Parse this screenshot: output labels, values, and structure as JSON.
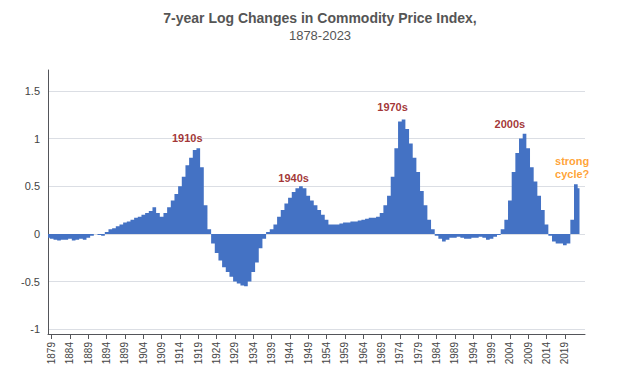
{
  "chart_data": {
    "type": "area",
    "title": "7-year Log Changes in Commodity Price Index,",
    "subtitle": "1878-2023",
    "x": [
      1878,
      1879,
      1880,
      1881,
      1882,
      1883,
      1884,
      1885,
      1886,
      1887,
      1888,
      1889,
      1890,
      1891,
      1892,
      1893,
      1894,
      1895,
      1896,
      1897,
      1898,
      1899,
      1900,
      1901,
      1902,
      1903,
      1904,
      1905,
      1906,
      1907,
      1908,
      1909,
      1910,
      1911,
      1912,
      1913,
      1914,
      1915,
      1916,
      1917,
      1918,
      1919,
      1920,
      1921,
      1922,
      1923,
      1924,
      1925,
      1926,
      1927,
      1928,
      1929,
      1930,
      1931,
      1932,
      1933,
      1934,
      1935,
      1936,
      1937,
      1938,
      1939,
      1940,
      1941,
      1942,
      1943,
      1944,
      1945,
      1946,
      1947,
      1948,
      1949,
      1950,
      1951,
      1952,
      1953,
      1954,
      1955,
      1956,
      1957,
      1958,
      1959,
      1960,
      1961,
      1962,
      1963,
      1964,
      1965,
      1966,
      1967,
      1968,
      1969,
      1970,
      1971,
      1972,
      1973,
      1974,
      1975,
      1976,
      1977,
      1978,
      1979,
      1980,
      1981,
      1982,
      1983,
      1984,
      1985,
      1986,
      1987,
      1988,
      1989,
      1990,
      1991,
      1992,
      1993,
      1994,
      1995,
      1996,
      1997,
      1998,
      1999,
      2000,
      2001,
      2002,
      2003,
      2004,
      2005,
      2006,
      2007,
      2008,
      2009,
      2010,
      2011,
      2012,
      2013,
      2014,
      2015,
      2016,
      2017,
      2018,
      2019,
      2020,
      2021,
      2022,
      2023
    ],
    "values": [
      -0.04,
      -0.05,
      -0.06,
      -0.07,
      -0.06,
      -0.06,
      -0.05,
      -0.07,
      -0.06,
      -0.05,
      -0.06,
      -0.04,
      -0.02,
      0.0,
      -0.01,
      -0.02,
      0.02,
      0.05,
      0.06,
      0.08,
      0.1,
      0.12,
      0.13,
      0.15,
      0.17,
      0.18,
      0.2,
      0.22,
      0.24,
      0.28,
      0.22,
      0.18,
      0.22,
      0.28,
      0.35,
      0.42,
      0.5,
      0.6,
      0.72,
      0.8,
      0.88,
      0.9,
      0.7,
      0.3,
      0.05,
      -0.1,
      -0.2,
      -0.28,
      -0.35,
      -0.4,
      -0.45,
      -0.5,
      -0.52,
      -0.54,
      -0.55,
      -0.5,
      -0.4,
      -0.3,
      -0.15,
      -0.05,
      0.02,
      0.05,
      0.1,
      0.18,
      0.25,
      0.32,
      0.38,
      0.44,
      0.48,
      0.5,
      0.48,
      0.4,
      0.35,
      0.3,
      0.25,
      0.2,
      0.15,
      0.1,
      0.1,
      0.1,
      0.11,
      0.12,
      0.12,
      0.13,
      0.13,
      0.14,
      0.15,
      0.16,
      0.17,
      0.17,
      0.18,
      0.22,
      0.3,
      0.4,
      0.6,
      0.9,
      1.18,
      1.2,
      1.1,
      0.95,
      0.8,
      0.65,
      0.45,
      0.3,
      0.15,
      0.05,
      -0.02,
      -0.05,
      -0.08,
      -0.06,
      -0.04,
      -0.04,
      -0.03,
      -0.04,
      -0.05,
      -0.05,
      -0.04,
      -0.04,
      -0.03,
      -0.04,
      -0.06,
      -0.05,
      -0.03,
      -0.01,
      0.05,
      0.15,
      0.35,
      0.65,
      0.85,
      1.0,
      1.05,
      0.9,
      0.7,
      0.55,
      0.4,
      0.25,
      0.1,
      -0.02,
      -0.08,
      -0.1,
      -0.1,
      -0.12,
      -0.1,
      0.15,
      0.52,
      0.48
    ],
    "color": "#4472C4",
    "xlim": [
      1878,
      2024.5
    ],
    "xticks": [
      1879,
      1884,
      1889,
      1894,
      1899,
      1904,
      1909,
      1914,
      1919,
      1924,
      1929,
      1934,
      1939,
      1944,
      1949,
      1954,
      1959,
      1964,
      1969,
      1974,
      1979,
      1984,
      1989,
      1994,
      1999,
      2004,
      2009,
      2014,
      2019
    ],
    "ylim": [
      -1.05,
      1.72
    ],
    "yticks": [
      -1.0,
      -0.5,
      0.0,
      0.5,
      1.0,
      1.5
    ],
    "grid": true,
    "annotations": [
      {
        "text": "1910s",
        "x": 1916,
        "y": 0.94,
        "color": "#8B0000"
      },
      {
        "text": "1940s",
        "x": 1945,
        "y": 0.52,
        "color": "#8B0000"
      },
      {
        "text": "1970s",
        "x": 1972,
        "y": 1.26,
        "color": "#8B0000"
      },
      {
        "text": "2000s",
        "x": 2004,
        "y": 1.08,
        "color": "#8B0000"
      },
      {
        "text": "strong\ncycle?",
        "x": 2021,
        "y": 0.56,
        "color": "#FF8C00"
      }
    ]
  }
}
